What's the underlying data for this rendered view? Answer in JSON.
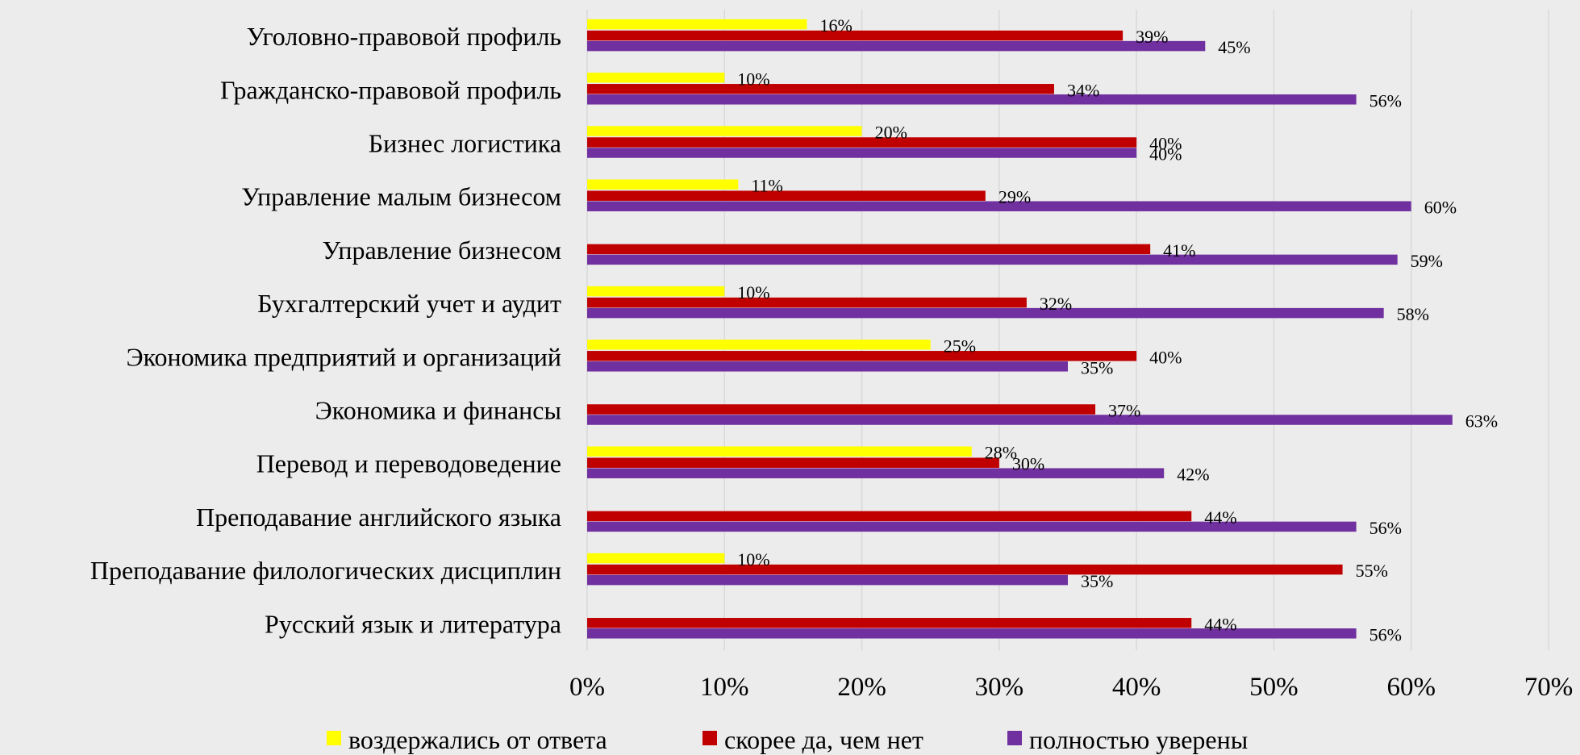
{
  "chart_data": {
    "type": "bar",
    "orientation": "horizontal",
    "categories": [
      "Уголовно-правовой профиль",
      "Гражданско-правовой профиль",
      "Бизнес логистика",
      "Управление малым бизнесом",
      "Управление бизнесом",
      "Бухгалтерский учет и аудит",
      "Экономика предприятий и организаций",
      "Экономика и финансы",
      "Перевод и переводоведение",
      "Преподавание английского языка",
      "Преподавание филологических дисциплин",
      "Русский язык и литература"
    ],
    "series": [
      {
        "name": "воздержались от ответа",
        "color": "#ffff00",
        "values": [
          16,
          10,
          20,
          11,
          null,
          10,
          25,
          null,
          28,
          null,
          10,
          null
        ],
        "labels": [
          "16%",
          "10%",
          "20%",
          "11%",
          null,
          "10%",
          "25%",
          null,
          "28%",
          null,
          "10%",
          null
        ]
      },
      {
        "name": "скорее да, чем нет",
        "color": "#c00000",
        "values": [
          39,
          34,
          40,
          29,
          41,
          32,
          40,
          37,
          30,
          44,
          55,
          44
        ],
        "labels": [
          "39%",
          "34%",
          "40%",
          "29%",
          "41%",
          "32%",
          "40%",
          "37%",
          "30%",
          "44%",
          "55%",
          "44%"
        ]
      },
      {
        "name": "полностью уверены",
        "color": "#7030a0",
        "values": [
          45,
          56,
          40,
          60,
          59,
          58,
          35,
          63,
          42,
          56,
          35,
          56
        ],
        "labels": [
          "45%",
          "56%",
          "40%",
          "60%",
          "59%",
          "58%",
          "35%",
          "63%",
          "42%",
          "56%",
          "35%",
          "56%"
        ]
      }
    ],
    "xlim": [
      0,
      70
    ],
    "xticks": [
      0,
      10,
      20,
      30,
      40,
      50,
      60,
      70
    ],
    "xtick_labels": [
      "0%",
      "10%",
      "20%",
      "30%",
      "40%",
      "50%",
      "60%",
      "70%"
    ],
    "grid": true,
    "legend_position": "bottom"
  }
}
